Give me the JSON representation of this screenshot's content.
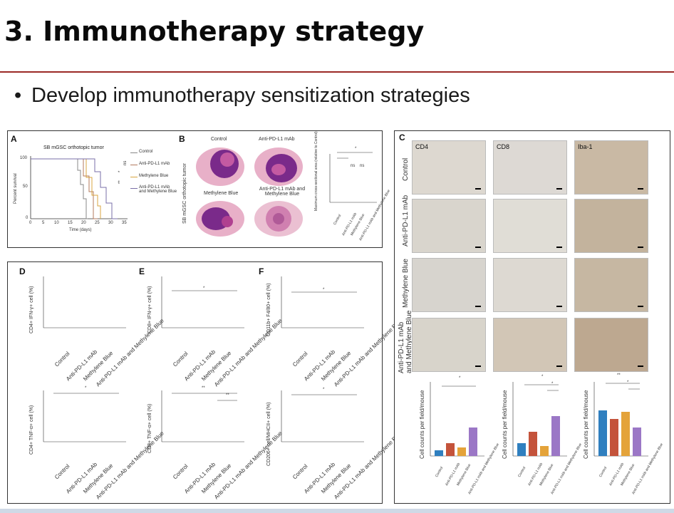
{
  "slide": {
    "title": "3. Immunotherapy strategy",
    "bullet": "Develop immunotherapy sensitization strategies"
  },
  "panelA": {
    "label": "A",
    "title": "SB mGSC orthotopic tumor",
    "ylabel": "Percent survival",
    "xlabel": "Time (days)",
    "yticks": [
      "100",
      "50",
      "0"
    ],
    "xticks": [
      "0",
      "5",
      "10",
      "15",
      "20",
      "25",
      "30",
      "35"
    ],
    "legend": [
      "Control",
      "Anti-PD-L1 mAb",
      "Methylene Blue",
      "Anti-PD-L1 mAb and Methylene Blue"
    ],
    "sig": [
      "ns",
      "*",
      "**"
    ],
    "colors": [
      "#888888",
      "#b37a5e",
      "#d8a640",
      "#7a6fa8"
    ]
  },
  "panelB": {
    "label": "B",
    "images": [
      "Control",
      "Anti-PD-L1 mAb",
      "Methylene Blue",
      "Anti-PD-L1 mAb and Methylene Blue"
    ],
    "side_label": "SB mGSC orthotopic tumor",
    "ylabel": "Maximum cross-sectional area (relative to Control)",
    "xcats": [
      "Control",
      "Anti-PD-L1 mAb",
      "Methylene Blue",
      "Anti-PD-L1 mAb and Methylene Blue"
    ],
    "sig": [
      "*",
      "ns",
      "ns"
    ]
  },
  "panelC": {
    "label": "C",
    "columns": [
      "CD4",
      "CD8",
      "Iba-1"
    ],
    "rows": [
      "Control",
      "Anti-PD-L1 mAb",
      "Methylene Blue",
      "Anti-PD-L1 mAb and Methylene Blue"
    ],
    "ylabel": "Cell counts per field/mouse",
    "xcats": [
      "Control",
      "Anti-PD-L1 mAb",
      "Methylene Blue",
      "Anti-PD-L1 mAb and Methylene Blue"
    ],
    "sig": [
      "*",
      "*",
      "*",
      "**",
      "*"
    ]
  },
  "panelD": {
    "label": "D",
    "ylabel_top": "CD4+ IFN-γ+ cell (%)",
    "ylabel_bottom": "CD4+ TNF-α+ cell (%)",
    "sig": [
      "*"
    ]
  },
  "panelE": {
    "label": "E",
    "ylabel_top": "CD8+ IFN-γ+ cell (%)",
    "ylabel_bottom": "CD8+ TNF-α+ cell (%)",
    "sig": [
      "*",
      "**",
      "**"
    ]
  },
  "panelF": {
    "label": "F",
    "ylabel_top": "CD11b+ F4/80+ cell (%)",
    "ylabel_bottom": "CD206+ cell/MHCII+ cell (%)",
    "sig": [
      "*",
      "*"
    ]
  },
  "scatter_xcats": [
    "Control",
    "Anti-PD-L1 mAb",
    "Methylene Blue",
    "Anti-PD-L1 mAb and Methylene Blue"
  ],
  "colors": {
    "control": "#2f7fbf",
    "antipd": "#c4533b",
    "mb": "#e4a33a",
    "combo": "#9b77c6",
    "rule": "#9b2a26"
  }
}
